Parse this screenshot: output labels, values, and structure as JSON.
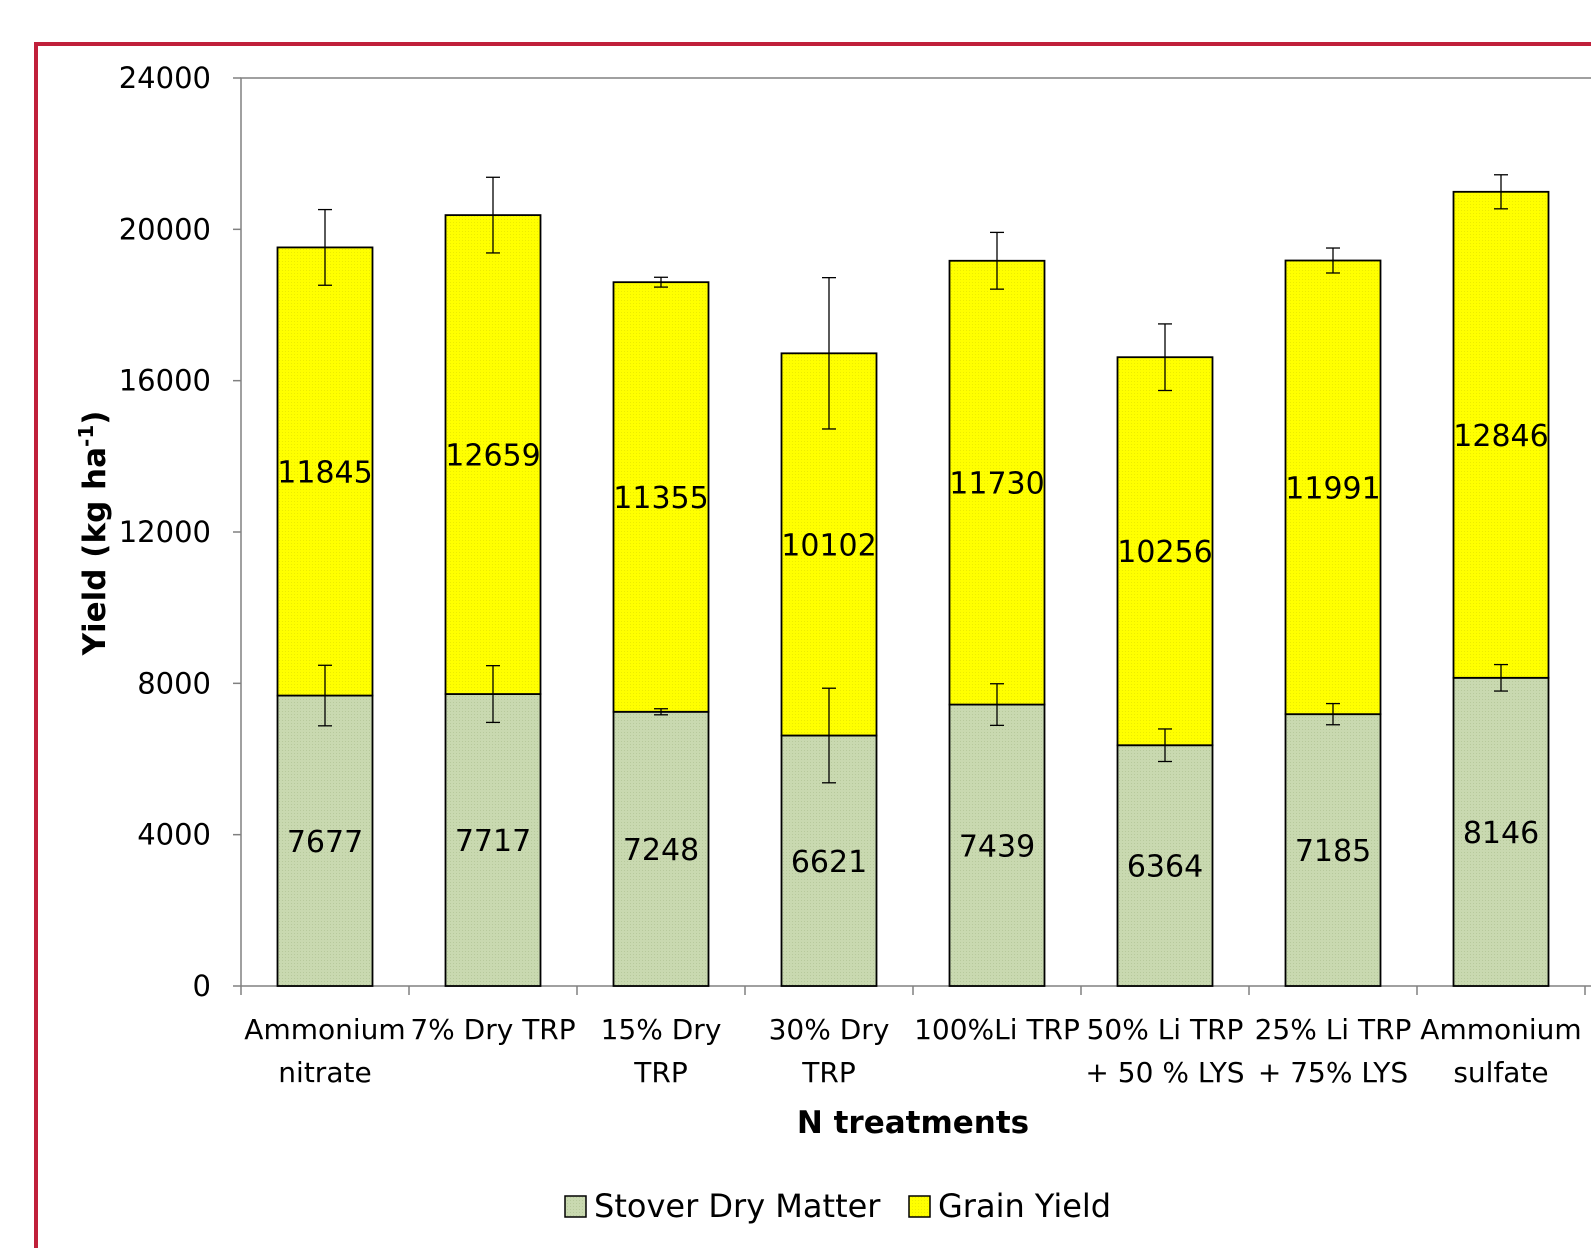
{
  "chart_data": {
    "type": "bar",
    "stacked": true,
    "xlabel": "N treatments",
    "ylabel": "Yield (kg ha-1)",
    "ylabel_parts": {
      "main": "Yield (kg ha",
      "sup": "-1",
      "close": ")"
    },
    "ylim": [
      0,
      24000
    ],
    "yticks": [
      0,
      4000,
      8000,
      12000,
      16000,
      20000,
      24000
    ],
    "grid": false,
    "legend_position": "bottom",
    "categories": [
      [
        "Ammonium",
        "nitrate"
      ],
      [
        "7% Dry TRP"
      ],
      [
        "15% Dry",
        "TRP"
      ],
      [
        "30% Dry",
        "TRP"
      ],
      [
        "100%Li TRP"
      ],
      [
        "50% Li TRP",
        "+ 50 % LYS"
      ],
      [
        "25% Li TRP",
        "+ 75% LYS"
      ],
      [
        "Ammonium",
        "sulfate"
      ]
    ],
    "series": [
      {
        "name": "Stover Dry Matter",
        "color": "#c9d9b0",
        "values": [
          7677,
          7717,
          7248,
          6621,
          7439,
          6364,
          7185,
          8146
        ],
        "error": [
          800,
          750,
          80,
          1250,
          550,
          430,
          280,
          350
        ]
      },
      {
        "name": "Grain Yield",
        "color": "#ffff00",
        "values": [
          11845,
          12659,
          11355,
          10102,
          11730,
          10256,
          11991,
          12846
        ],
        "error": [
          1000,
          1000,
          130,
          2000,
          750,
          880,
          330,
          450
        ]
      }
    ]
  },
  "colors": {
    "frame": "#c0203a",
    "axis": "#808080",
    "bar_outline": "#000000"
  }
}
